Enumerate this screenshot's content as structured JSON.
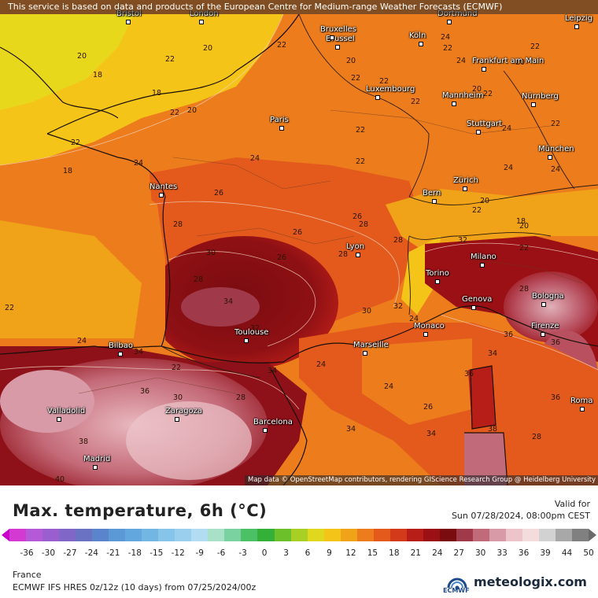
{
  "banner": "This service is based on data and products of the European Centre for Medium-range Weather Forecasts (ECMWF)",
  "attribution": "Map data © OpenStreetMap contributors, rendering GIScience Research Group @ Heidelberg University",
  "title": "Max. temperature, 6h (°C)",
  "valid_label": "Valid for",
  "valid_time": "Sun 07/28/2024, 08:00pm CEST",
  "region": "France",
  "model_run": "ECMWF IFS HRES 0z/12z (10 days) from 07/25/2024/00z",
  "ecmwf_label": "ECMWF",
  "brand": "meteologix.com",
  "colorbar": {
    "ticks": [
      "-36",
      "-30",
      "-27",
      "-24",
      "-21",
      "-18",
      "-15",
      "-12",
      "-9",
      "-6",
      "-3",
      "0",
      "3",
      "6",
      "9",
      "12",
      "15",
      "18",
      "21",
      "24",
      "27",
      "30",
      "33",
      "36",
      "39",
      "44",
      "50"
    ],
    "colors": [
      "#d23ad2",
      "#b45ad8",
      "#9a5ecf",
      "#8066c6",
      "#6a72c4",
      "#5a84cc",
      "#5a98d6",
      "#62a8de",
      "#72b6e4",
      "#86c4ea",
      "#9ad0ee",
      "#b2dcf2",
      "#a8e0c8",
      "#7ad2a0",
      "#4cc064",
      "#34b038",
      "#6cc02a",
      "#a8d024",
      "#e0d81c",
      "#f4c418",
      "#f0a218",
      "#ec7c1c",
      "#e45a1c",
      "#d23a1a",
      "#b81e18",
      "#9a1014",
      "#7a0c10",
      "#a03a4a",
      "#c06a7a",
      "#d89aa6",
      "#ecc4ca",
      "#f4dcdc",
      "#d2d2d2",
      "#a8a8a8",
      "#808080"
    ]
  },
  "cities": [
    {
      "name": "Bristol"
    },
    {
      "name": "London"
    },
    {
      "name": "Brussel"
    },
    {
      "name": "Bruxelles"
    },
    {
      "name": "Köln"
    },
    {
      "name": "Dortmund"
    },
    {
      "name": "Leipzig"
    },
    {
      "name": "Frankfurt am Main"
    },
    {
      "name": "Luxembourg"
    },
    {
      "name": "Mannheim"
    },
    {
      "name": "Nürnberg"
    },
    {
      "name": "Paris"
    },
    {
      "name": "Stuttgart"
    },
    {
      "name": "München"
    },
    {
      "name": "Nantes"
    },
    {
      "name": "Zürich"
    },
    {
      "name": "Bern"
    },
    {
      "name": "Lyon"
    },
    {
      "name": "Milano"
    },
    {
      "name": "Torino"
    },
    {
      "name": "Genova"
    },
    {
      "name": "Bologna"
    },
    {
      "name": "Firenze"
    },
    {
      "name": "Monaco"
    },
    {
      "name": "Toulouse"
    },
    {
      "name": "Marseille"
    },
    {
      "name": "Bilbao"
    },
    {
      "name": "Valladolid"
    },
    {
      "name": "Zaragoza"
    },
    {
      "name": "Barcelona"
    },
    {
      "name": "Madrid"
    },
    {
      "name": "Roma"
    }
  ],
  "isotherm_labels": [
    "20",
    "18",
    "20",
    "22",
    "22",
    "20",
    "18",
    "22",
    "20",
    "22",
    "22",
    "22",
    "20",
    "22",
    "22",
    "24",
    "22",
    "22",
    "24",
    "22",
    "24",
    "24",
    "24",
    "20",
    "22",
    "24",
    "24",
    "26",
    "24",
    "22",
    "22",
    "18",
    "20",
    "18",
    "26",
    "28",
    "26",
    "26",
    "28",
    "30",
    "28",
    "34",
    "32",
    "22",
    "34",
    "30",
    "28",
    "24",
    "24",
    "26",
    "30",
    "32",
    "34",
    "36",
    "28",
    "36",
    "34",
    "34",
    "38",
    "36",
    "40",
    "24",
    "28",
    "28",
    "32",
    "36",
    "36",
    "28",
    "34",
    "20",
    "22",
    "22",
    "38"
  ]
}
